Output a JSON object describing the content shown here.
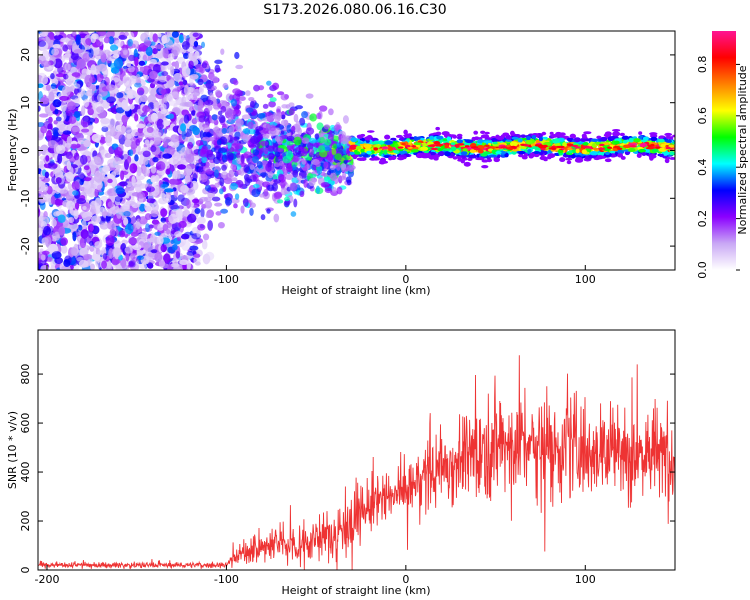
{
  "title": "S173.2026.080.06.16.C30",
  "chart_data": [
    {
      "type": "heatmap",
      "name": "spectrogram",
      "xlabel": "Height of straight line (km)",
      "ylabel": "Frequency (Hz)",
      "xlim": [
        -205,
        150
      ],
      "ylim": [
        -25,
        25
      ],
      "x_ticks": [
        -200,
        -100,
        0,
        100
      ],
      "x_tick_labels": [
        "-200",
        "-100",
        "0",
        "100"
      ],
      "y_ticks": [
        -20,
        -10,
        0,
        10,
        20
      ],
      "y_tick_labels": [
        "-20",
        "-10",
        "0",
        "10",
        "20"
      ],
      "colorbar": {
        "label": "Normalized spectral amplitude",
        "range": [
          0,
          0.93
        ],
        "ticks": [
          0.0,
          0.2,
          0.4,
          0.6,
          0.8
        ],
        "tick_labels": [
          "0.0",
          "0.2",
          "0.4",
          "0.6",
          "0.8"
        ],
        "colors": [
          "#ffffff",
          "#c9a8f5",
          "#8b00ff",
          "#0000ff",
          "#00ffff",
          "#00ff00",
          "#ffff00",
          "#ff8000",
          "#ff0000",
          "#ff1493"
        ]
      },
      "features": [
        {
          "description": "broadband noise",
          "x_range": [
            -205,
            -115
          ],
          "y_range": [
            -25,
            25
          ],
          "level": 0.08
        },
        {
          "description": "transition",
          "x_range": [
            -115,
            -30
          ],
          "y_range": [
            -8,
            8
          ],
          "level": 0.3
        },
        {
          "description": "narrow line",
          "x_range": [
            -30,
            150
          ],
          "center_freq": 0.8,
          "half_width": 2.0,
          "level": 0.85
        }
      ]
    },
    {
      "type": "line",
      "name": "snr",
      "xlabel": "Height of straight line (km)",
      "ylabel": "SNR (10 * v/v)",
      "xlim": [
        -205,
        150
      ],
      "ylim": [
        0,
        980
      ],
      "x_ticks": [
        -200,
        -100,
        0,
        100
      ],
      "x_tick_labels": [
        "-200",
        "-100",
        "0",
        "100"
      ],
      "y_ticks": [
        0,
        200,
        400,
        600,
        800
      ],
      "y_tick_labels": [
        "0",
        "200",
        "400",
        "600",
        "800"
      ],
      "color": "#ee3333",
      "trend": [
        {
          "x": -205,
          "base": 20,
          "noise": 12
        },
        {
          "x": -100,
          "base": 20,
          "noise": 12
        },
        {
          "x": -95,
          "base": 60,
          "noise": 40
        },
        {
          "x": -70,
          "base": 110,
          "noise": 90
        },
        {
          "x": -55,
          "base": 110,
          "noise": 90
        },
        {
          "x": -40,
          "base": 150,
          "noise": 120
        },
        {
          "x": -20,
          "base": 260,
          "noise": 140
        },
        {
          "x": 0,
          "base": 330,
          "noise": 120
        },
        {
          "x": 20,
          "base": 420,
          "noise": 160
        },
        {
          "x": 50,
          "base": 520,
          "noise": 230
        },
        {
          "x": 100,
          "base": 500,
          "noise": 220
        },
        {
          "x": 150,
          "base": 460,
          "noise": 200
        }
      ]
    }
  ]
}
